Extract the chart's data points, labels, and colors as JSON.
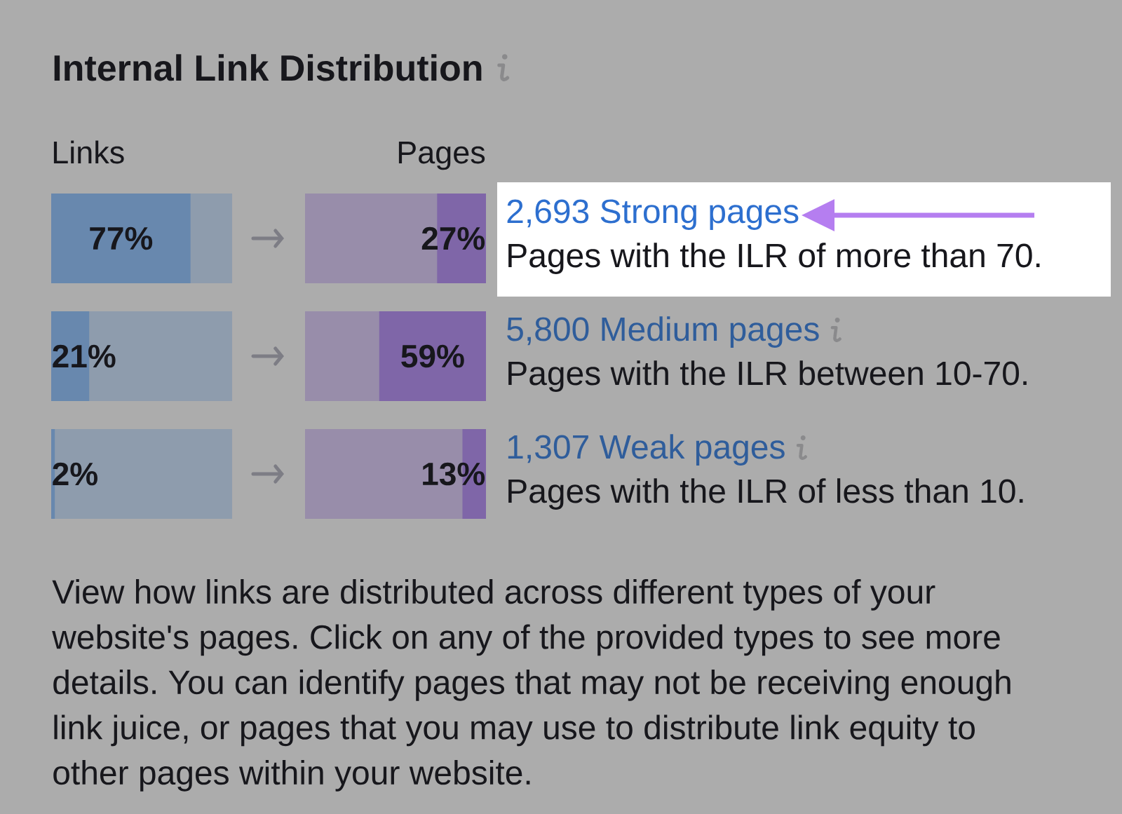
{
  "chart_data": [
    {
      "type": "bar",
      "orientation": "horizontal",
      "title": "Internal Link Distribution",
      "xlabel": "Links",
      "categories": [
        null,
        null,
        null
      ],
      "values": [
        77,
        21,
        2
      ],
      "value_labels": [
        "77%",
        "21%",
        "2%"
      ],
      "color": "#6888ae",
      "xlim": [
        0,
        100
      ],
      "tick_labels": false
    },
    {
      "type": "bar",
      "orientation": "horizontal",
      "xlabel": "Pages",
      "categories": [
        "2,693 Strong pages",
        "5,800 Medium pages",
        "1,307 Weak pages"
      ],
      "values": [
        27,
        59,
        13
      ],
      "value_labels": [
        "27%",
        "59%",
        "13%"
      ],
      "color": "#7f66a8",
      "xlim": [
        100,
        0
      ],
      "tick_labels": "y",
      "annotations": [
        "Pages with the ILR of more than 70.",
        "Pages with the ILR between 10-70.",
        "Pages with the ILR of less than 10.",
        "View how links are distributed across different types of your website's pages. Click on any of the provided types to see more details. You can identify pages that may not be receiving enough link juice, or pages that you may use to distribute link equity to other pages within your website."
      ]
    }
  ]
}
